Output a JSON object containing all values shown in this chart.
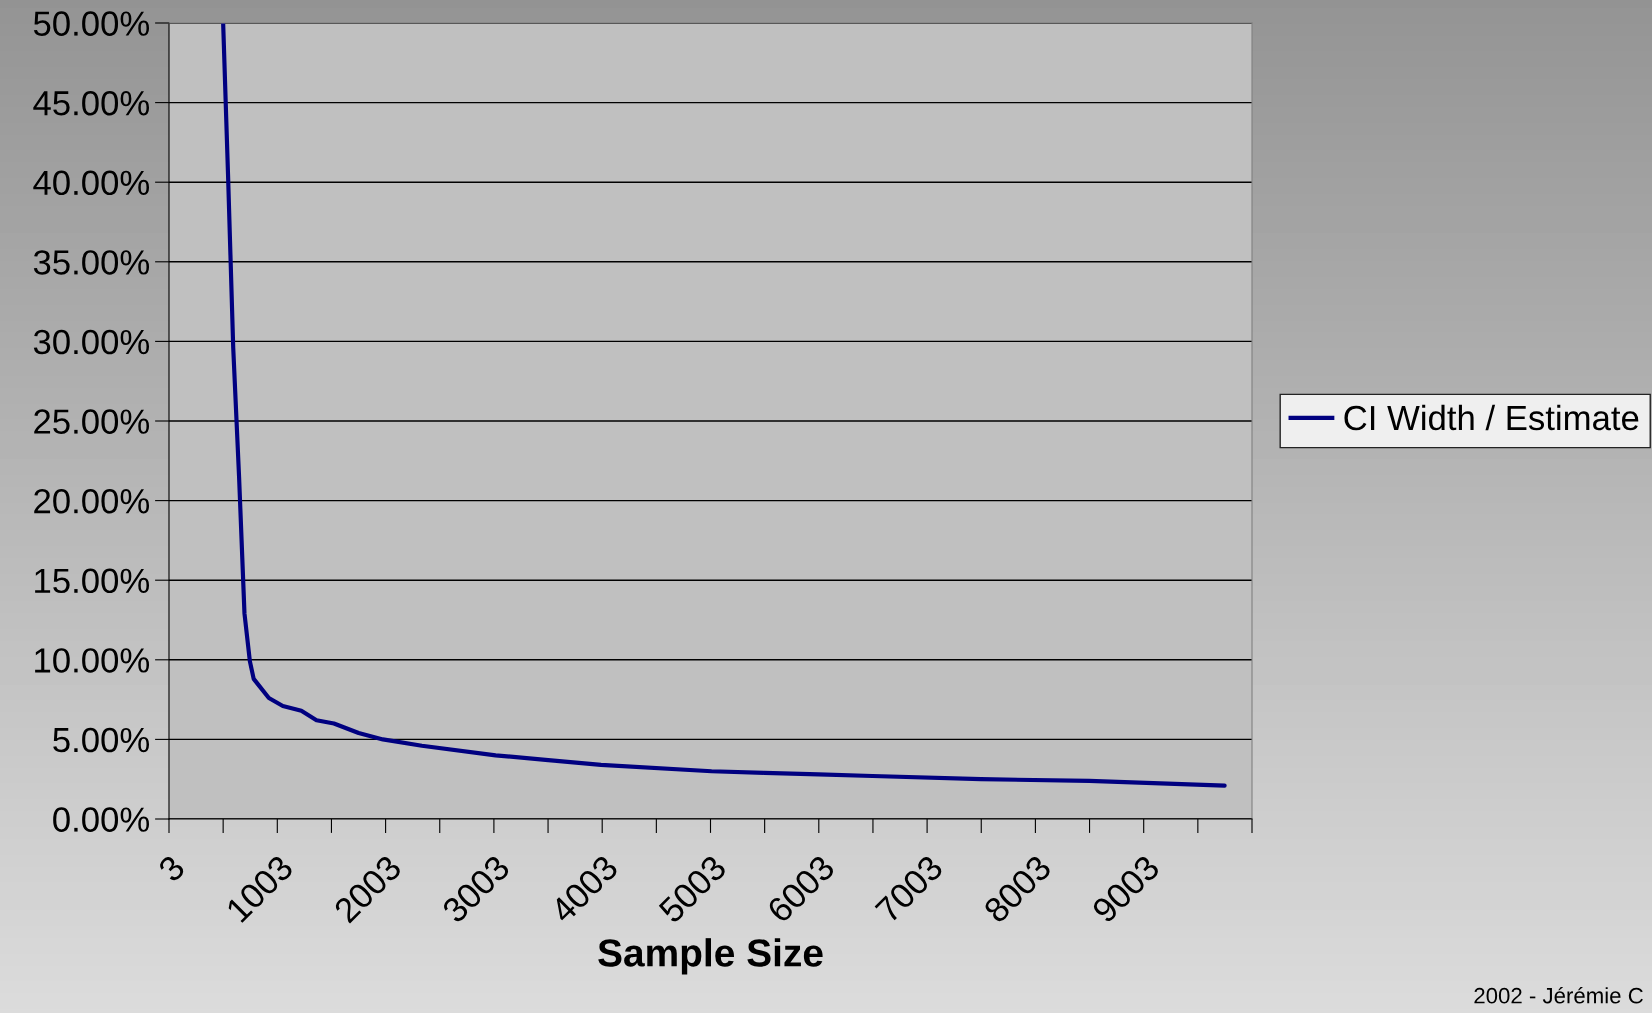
{
  "chart_data": {
    "type": "line",
    "xlabel": "Sample Size",
    "annotations": [
      "2002 - Jérémie C"
    ],
    "series": [
      {
        "name": "CI Width / Estimate",
        "color": "#000080",
        "x": [
          503,
          548,
          596,
          650,
          700,
          750,
          785,
          925,
          1054,
          1225,
          1365,
          1526,
          1754,
          1978,
          2338,
          3019,
          3505,
          3992,
          5013,
          5500,
          6000,
          6500,
          7500,
          8500,
          9750
        ],
        "values": [
          50,
          40.5,
          29.6,
          21.5,
          12.9,
          9.9,
          8.8,
          7.6,
          7.1,
          6.8,
          6.2,
          6.0,
          5.4,
          5.0,
          4.6,
          4.0,
          3.7,
          3.4,
          3.0,
          2.9,
          2.8,
          2.7,
          2.5,
          2.4,
          2.1
        ]
      }
    ],
    "xlim": [
      3,
      10003
    ],
    "xticks": [
      3,
      {
        "value": 503,
        "label": null
      },
      1003,
      {
        "value": 1503,
        "label": null
      },
      2003,
      {
        "value": 2503,
        "label": null
      },
      3003,
      {
        "value": 3503,
        "label": null
      },
      4003,
      {
        "value": 4503,
        "label": null
      },
      5003,
      {
        "value": 5503,
        "label": null
      },
      6003,
      {
        "value": 6503,
        "label": null
      },
      7003,
      {
        "value": 7503,
        "label": null
      },
      8003,
      {
        "value": 8503,
        "label": null
      },
      9003,
      {
        "value": 9503,
        "label": null
      },
      {
        "value": 10003,
        "label": null
      }
    ],
    "ylim": [
      0,
      50
    ],
    "yticks": [
      {
        "value": 0,
        "label": "0.00%"
      },
      {
        "value": 5,
        "label": "5.00%"
      },
      {
        "value": 10,
        "label": "10.00%"
      },
      {
        "value": 15,
        "label": "15.00%"
      },
      {
        "value": 20,
        "label": "20.00%"
      },
      {
        "value": 25,
        "label": "25.00%"
      },
      {
        "value": 30,
        "label": "30.00%"
      },
      {
        "value": 35,
        "label": "35.00%"
      },
      {
        "value": 40,
        "label": "40.00%"
      },
      {
        "value": 45,
        "label": "45.00%"
      },
      {
        "value": 50,
        "label": "50.00%"
      }
    ],
    "grid": "y",
    "legend": "right",
    "marker": "none",
    "line_style": "solid"
  }
}
